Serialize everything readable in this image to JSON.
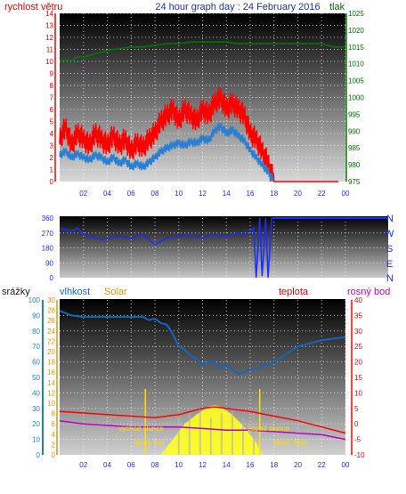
{
  "header": {
    "left_label": "rychlost větru",
    "title": "24 hour graph day : 24 February 2016",
    "right_label": "tlak"
  },
  "colors": {
    "wind": "#ff0000",
    "wind_dark": "#2a7fd0",
    "pressure": "#007a00",
    "direction": "#1a2bff",
    "rain": "#1e7fd0",
    "humidity": "#1565c0",
    "solar": "#e39400",
    "temp": "#ff0000",
    "dew": "#c000c0",
    "sun_fill": "#ffff20",
    "moon": "#ffe000"
  },
  "hours": [
    "02",
    "04",
    "06",
    "08",
    "10",
    "12",
    "14",
    "16",
    "18",
    "20",
    "22",
    "00"
  ],
  "chart_data": [
    {
      "type": "line",
      "title": "24 hour graph day : 24 February 2016",
      "x_range": [
        0,
        24
      ],
      "left_axis": {
        "label": "rychlost větru",
        "ylim": [
          0,
          14
        ],
        "ticks": [
          0,
          1,
          2,
          3,
          4,
          5,
          6,
          7,
          8,
          9,
          10,
          11,
          12,
          13,
          14
        ]
      },
      "right_axis": {
        "label": "tlak",
        "ylim": [
          975,
          1025
        ],
        "ticks": [
          975,
          980,
          985,
          990,
          995,
          1000,
          1005,
          1010,
          1015,
          1020,
          1025
        ]
      },
      "series": [
        {
          "name": "rychlost větru",
          "axis": "left",
          "x": [
            0,
            0.5,
            1,
            1.5,
            2,
            2.5,
            3,
            3.5,
            4,
            4.5,
            5,
            5.5,
            6,
            6.5,
            7,
            7.5,
            8,
            8.5,
            9,
            9.5,
            10,
            10.5,
            11,
            11.5,
            12,
            12.5,
            13,
            13.5,
            14,
            14.5,
            15,
            15.5,
            16,
            16.5,
            17,
            17.5,
            18,
            24
          ],
          "y": [
            3.5,
            4.5,
            3,
            4,
            3.5,
            3,
            4,
            3.5,
            3,
            3.8,
            3,
            3.5,
            2.5,
            3.2,
            2.8,
            3.5,
            4,
            5,
            5.5,
            6,
            5,
            6,
            5.5,
            5,
            6,
            5.5,
            6.5,
            7,
            6,
            6.5,
            6,
            5.5,
            4,
            3.5,
            2.5,
            1.5,
            0,
            0
          ]
        },
        {
          "name": "wind average",
          "axis": "left",
          "x": [
            0,
            0.5,
            1,
            1.5,
            2,
            2.5,
            3,
            3.5,
            4,
            4.5,
            5,
            5.5,
            6,
            6.5,
            7,
            7.5,
            8,
            8.5,
            9,
            9.5,
            10,
            10.5,
            11,
            11.5,
            12,
            12.5,
            13,
            13.5,
            14,
            14.5,
            15,
            15.5,
            16,
            16.5,
            17,
            17.5,
            18
          ],
          "y": [
            2.2,
            2.5,
            2,
            2.3,
            2,
            1.8,
            2.2,
            2,
            1.6,
            2,
            1.5,
            1.8,
            1.2,
            1.5,
            1.2,
            1.6,
            2,
            2.5,
            2.8,
            3,
            3.2,
            3,
            3.3,
            3.2,
            3.6,
            3.4,
            4.2,
            4.6,
            4,
            4.3,
            3.8,
            3.4,
            2.6,
            2,
            1.4,
            0.8,
            0
          ]
        },
        {
          "name": "tlak",
          "axis": "right",
          "x": [
            0,
            1,
            1.5,
            2,
            3,
            4,
            5,
            6,
            7,
            8,
            9,
            10,
            11,
            12,
            13,
            14,
            15,
            16,
            17,
            18,
            19,
            20,
            21,
            22,
            23,
            24
          ],
          "y": [
            1011,
            1011,
            1012,
            1012,
            1013,
            1014,
            1014.5,
            1015,
            1015,
            1015.5,
            1016,
            1016,
            1016.5,
            1016.5,
            1016.5,
            1016.5,
            1016,
            1016,
            1016,
            1016,
            1016,
            1016,
            1016,
            1016,
            1015,
            1015
          ]
        }
      ]
    },
    {
      "type": "line",
      "x_range": [
        0,
        24
      ],
      "left_axis": {
        "ylim": [
          0,
          360
        ],
        "ticks": [
          0,
          90,
          180,
          270,
          360
        ]
      },
      "right_axis": {
        "labels": [
          "N",
          "W",
          "S",
          "E",
          "N"
        ]
      },
      "series": [
        {
          "name": "direction",
          "x": [
            0,
            0.5,
            1,
            1.5,
            1.9,
            2,
            2.5,
            3,
            3.5,
            4,
            5,
            6,
            7,
            8,
            9,
            10,
            11,
            12,
            13,
            14,
            15,
            15.5,
            16,
            16.3,
            16.5,
            16.8,
            17,
            17.3,
            17.5,
            17.8,
            18,
            24
          ],
          "y": [
            300,
            290,
            280,
            300,
            270,
            260,
            250,
            240,
            230,
            235,
            250,
            240,
            260,
            200,
            240,
            250,
            260,
            240,
            260,
            250,
            270,
            260,
            280,
            300,
            0,
            360,
            10,
            360,
            0,
            360,
            360,
            360
          ]
        }
      ]
    },
    {
      "type": "line",
      "x_range": [
        0,
        24
      ],
      "axes": {
        "rain": {
          "label": "srážky",
          "ylim": [
            0,
            100
          ],
          "ticks": [
            0,
            10,
            20,
            30,
            40,
            50,
            60,
            70,
            80,
            90,
            100
          ]
        },
        "humidity": {
          "label": "vlhkost",
          "ylim": [
            0,
            30
          ],
          "ticks": [
            0,
            2,
            4,
            6,
            8,
            10,
            12,
            14,
            16,
            18,
            20,
            22,
            24,
            26,
            28,
            30
          ]
        },
        "temp": {
          "label": "teplota",
          "ylim": [
            -10,
            40
          ],
          "ticks": [
            -10,
            -5,
            0,
            5,
            10,
            15,
            20,
            25,
            30,
            35,
            40
          ]
        }
      },
      "labels": {
        "solar": "Solar",
        "dew": "rosný bod",
        "sunrise": "východ slunce",
        "sunset": "západ slunce",
        "moonset": "Moon Set",
        "moonrise": "Moon Rise"
      },
      "series": [
        {
          "name": "vlhkost",
          "axis": "rain",
          "x": [
            0,
            1,
            2,
            3,
            4,
            5,
            6,
            7,
            7.5,
            8,
            8.5,
            9,
            9.5,
            10,
            10.5,
            11,
            11.5,
            12,
            12.5,
            13,
            13.5,
            14,
            14.5,
            15,
            16,
            17,
            18,
            19,
            20,
            21,
            22,
            23,
            24
          ],
          "y": [
            93,
            90,
            89,
            89,
            89,
            89,
            89,
            89,
            87,
            88,
            85,
            84,
            78,
            70,
            68,
            64,
            62,
            58,
            60,
            60,
            56,
            58,
            55,
            52,
            55,
            57,
            60,
            65,
            70,
            72,
            74,
            75,
            76
          ]
        },
        {
          "name": "teplota",
          "axis": "temp",
          "x": [
            0,
            2,
            4,
            6,
            8,
            10,
            12,
            13,
            14,
            16,
            18,
            20,
            22,
            24
          ],
          "y": [
            4,
            3.5,
            3,
            2.5,
            2,
            3,
            5,
            5.5,
            5,
            4,
            2.5,
            1,
            -1,
            -3
          ]
        },
        {
          "name": "rosný bod",
          "axis": "temp",
          "x": [
            0,
            2,
            4,
            6,
            8,
            10,
            12,
            14,
            16,
            18,
            20,
            22,
            24
          ],
          "y": [
            1,
            0,
            -0.5,
            -1,
            -1,
            -1,
            -1.5,
            -2,
            -2,
            -2.5,
            -3,
            -3.5,
            -5
          ]
        },
        {
          "name": "Solar",
          "axis": "temp",
          "x": [
            0,
            8.5,
            9.5,
            10.5,
            11.5,
            12.5,
            13,
            13.5,
            14.5,
            15.5,
            16.5,
            17,
            24
          ],
          "y": [
            -10,
            -10,
            -5,
            0,
            3,
            5.5,
            6,
            5.5,
            3,
            -1,
            -6,
            -10,
            -10
          ]
        }
      ]
    }
  ]
}
